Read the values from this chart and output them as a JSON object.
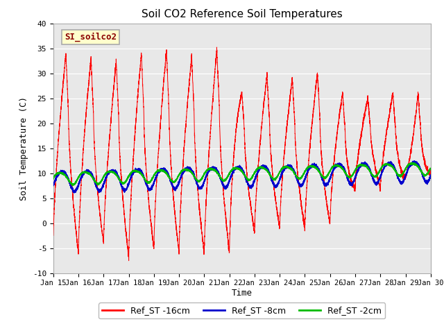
{
  "title": "Soil CO2 Reference Soil Temperatures",
  "xlabel": "Time",
  "ylabel": "Soil Temperature (C)",
  "ylim": [
    -10,
    40
  ],
  "xlim": [
    0,
    15
  ],
  "xtick_labels": [
    "Jan 15",
    "Jan 16",
    "Jan 17",
    "Jan 18",
    "Jan 19",
    "Jan 20",
    "Jan 21",
    "Jan 22",
    "Jan 23",
    "Jan 24",
    "Jan 25",
    "Jan 26",
    "Jan 27",
    "Jan 28",
    "Jan 29",
    "Jan 30"
  ],
  "legend_labels": [
    "Ref_ST -16cm",
    "Ref_ST -8cm",
    "Ref_ST -2cm"
  ],
  "legend_colors": [
    "#ff0000",
    "#0000cc",
    "#00bb00"
  ],
  "annotation_text": "SI_soilco2",
  "line_color_red": "#ff0000",
  "line_color_blue": "#0000cc",
  "line_color_green": "#00bb00",
  "ytick_values": [
    -10,
    -5,
    0,
    5,
    10,
    15,
    20,
    25,
    30,
    35,
    40
  ],
  "fig_facecolor": "#ffffff",
  "ax_facecolor": "#e8e8e8"
}
